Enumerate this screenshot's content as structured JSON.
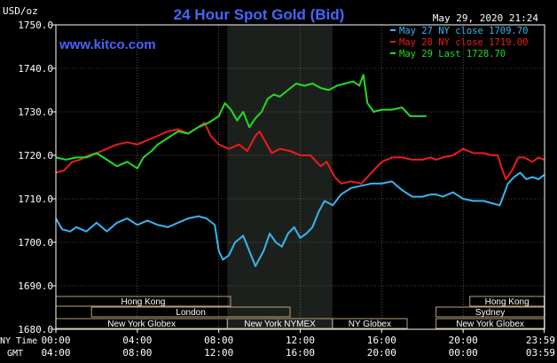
{
  "header": {
    "title": "24 Hour Spot Gold (Bid)",
    "unit": "USD/oz",
    "timestamp": "May 29, 2020 21:24",
    "site": "www.kitco.com"
  },
  "colors": {
    "background": "#000000",
    "frame": "#ffffff",
    "grid": "#8a8a8a",
    "title": "#4466ff",
    "shade": "#1c201c",
    "market_box": "#b8a27a"
  },
  "axis_labels": {
    "ny_time": "NY Time",
    "gmt": "GMT"
  },
  "markets": [
    {
      "label": "Hong Kong",
      "start": 0,
      "end": 8.58,
      "row": 0
    },
    {
      "label": "Hong Kong",
      "start": 20.33,
      "end": 23.98,
      "row": 0
    },
    {
      "label": "London",
      "start": 1.75,
      "end": 11.5,
      "row": 1
    },
    {
      "label": "Sydney",
      "start": 18.67,
      "end": 23.98,
      "row": 1
    },
    {
      "label": "New York Globex",
      "start": 0,
      "end": 8.42,
      "row": 2
    },
    {
      "label": "New York NYMEX",
      "start": 8.42,
      "end": 13.58,
      "row": 2
    },
    {
      "label": "NY Globex",
      "start": 13.58,
      "end": 17.25,
      "row": 2
    },
    {
      "label": "New York Globex",
      "start": 18.67,
      "end": 23.98,
      "row": 2
    }
  ],
  "chart_data": {
    "type": "line",
    "title": "24 Hour Spot Gold (Bid)",
    "ylabel": "USD/oz",
    "xlim": [
      0,
      24
    ],
    "ylim": [
      1680,
      1750
    ],
    "grid": true,
    "legend_position": "top-right",
    "shaded_region": [
      8.42,
      13.58
    ],
    "y_ticks": [
      "1750.0",
      "1740.0",
      "1730.0",
      "1720.0",
      "1710.0",
      "1700.0",
      "1690.0",
      "1680.0"
    ],
    "y_tick_values": [
      1750,
      1740,
      1730,
      1720,
      1710,
      1700,
      1690,
      1680
    ],
    "x_ticks": [
      {
        "value": 0,
        "ny": "00:00",
        "gmt": "04:00"
      },
      {
        "value": 4,
        "ny": "04:00",
        "gmt": "08:00"
      },
      {
        "value": 8,
        "ny": "08:00",
        "gmt": "12:00"
      },
      {
        "value": 12,
        "ny": "12:00",
        "gmt": "16:00"
      },
      {
        "value": 16,
        "ny": "16:00",
        "gmt": "20:00"
      },
      {
        "value": 20,
        "ny": "20:00",
        "gmt": "00:00"
      },
      {
        "value": 23.98,
        "ny": "23:59",
        "gmt": "03:59"
      }
    ],
    "series": [
      {
        "name": "May 27 NY close 1709.70",
        "color": "#3ab4f2",
        "points": [
          [
            0,
            1705.5
          ],
          [
            0.3,
            1703
          ],
          [
            0.7,
            1702.5
          ],
          [
            1.0,
            1703.5
          ],
          [
            1.5,
            1702.5
          ],
          [
            2.0,
            1704.5
          ],
          [
            2.5,
            1702.5
          ],
          [
            3.0,
            1704.5
          ],
          [
            3.5,
            1705.5
          ],
          [
            4.0,
            1704
          ],
          [
            4.5,
            1705
          ],
          [
            5.0,
            1704
          ],
          [
            5.5,
            1703.5
          ],
          [
            6.0,
            1704.5
          ],
          [
            6.5,
            1705.5
          ],
          [
            7.0,
            1706
          ],
          [
            7.4,
            1705.5
          ],
          [
            7.8,
            1704
          ],
          [
            8.0,
            1698
          ],
          [
            8.2,
            1696
          ],
          [
            8.5,
            1697
          ],
          [
            8.8,
            1700
          ],
          [
            9.2,
            1701.5
          ],
          [
            9.5,
            1698
          ],
          [
            9.8,
            1694.5
          ],
          [
            10.2,
            1698
          ],
          [
            10.5,
            1702
          ],
          [
            10.8,
            1700
          ],
          [
            11.1,
            1699
          ],
          [
            11.4,
            1702
          ],
          [
            11.7,
            1703.5
          ],
          [
            12.0,
            1701
          ],
          [
            12.3,
            1702
          ],
          [
            12.6,
            1703.5
          ],
          [
            12.9,
            1707
          ],
          [
            13.2,
            1709.5
          ],
          [
            13.6,
            1708.5
          ],
          [
            14.0,
            1711
          ],
          [
            14.5,
            1712.5
          ],
          [
            15.0,
            1713
          ],
          [
            15.5,
            1713.5
          ],
          [
            16.0,
            1713.5
          ],
          [
            16.5,
            1714
          ],
          [
            17.0,
            1712
          ],
          [
            17.5,
            1710.5
          ],
          [
            18.0,
            1710.5
          ],
          [
            18.4,
            1711
          ],
          [
            18.67,
            1711
          ],
          [
            19.0,
            1710.5
          ],
          [
            19.5,
            1711.5
          ],
          [
            20.0,
            1710
          ],
          [
            20.5,
            1709.5
          ],
          [
            21.0,
            1709.5
          ],
          [
            21.4,
            1709
          ],
          [
            21.8,
            1708.5
          ],
          [
            22.0,
            1711
          ],
          [
            22.2,
            1713.5
          ],
          [
            22.5,
            1715
          ],
          [
            22.8,
            1716
          ],
          [
            23.1,
            1714.5
          ],
          [
            23.4,
            1715
          ],
          [
            23.7,
            1714.5
          ],
          [
            23.98,
            1715.5
          ]
        ]
      },
      {
        "name": "May 28 NY close 1719.00",
        "color": "#ee1c1c",
        "points": [
          [
            0,
            1716
          ],
          [
            0.4,
            1716.5
          ],
          [
            0.8,
            1718.5
          ],
          [
            1.2,
            1719
          ],
          [
            1.6,
            1720
          ],
          [
            2.0,
            1720.5
          ],
          [
            2.5,
            1721.5
          ],
          [
            3.0,
            1722.5
          ],
          [
            3.5,
            1723
          ],
          [
            4.0,
            1722.5
          ],
          [
            4.5,
            1723.5
          ],
          [
            5.0,
            1724.5
          ],
          [
            5.5,
            1725.5
          ],
          [
            6.0,
            1726
          ],
          [
            6.5,
            1725
          ],
          [
            7.0,
            1726.5
          ],
          [
            7.3,
            1727.5
          ],
          [
            7.6,
            1724.5
          ],
          [
            8.0,
            1722.5
          ],
          [
            8.5,
            1721.5
          ],
          [
            9.0,
            1722.5
          ],
          [
            9.4,
            1721
          ],
          [
            9.8,
            1724.5
          ],
          [
            10.0,
            1725.5
          ],
          [
            10.3,
            1723
          ],
          [
            10.6,
            1720.5
          ],
          [
            11.0,
            1721.5
          ],
          [
            11.5,
            1721
          ],
          [
            12.0,
            1720
          ],
          [
            12.5,
            1720
          ],
          [
            13.0,
            1717.5
          ],
          [
            13.3,
            1718.5
          ],
          [
            13.7,
            1715
          ],
          [
            14.0,
            1713.5
          ],
          [
            14.5,
            1714
          ],
          [
            15.0,
            1713.5
          ],
          [
            15.5,
            1716
          ],
          [
            16.0,
            1718.5
          ],
          [
            16.5,
            1719.5
          ],
          [
            17.0,
            1719.5
          ],
          [
            17.5,
            1719
          ],
          [
            18.0,
            1719
          ],
          [
            18.4,
            1719.5
          ],
          [
            18.67,
            1719
          ],
          [
            19.0,
            1719.5
          ],
          [
            19.5,
            1720
          ],
          [
            20.0,
            1721.5
          ],
          [
            20.5,
            1720.5
          ],
          [
            21.0,
            1720.5
          ],
          [
            21.4,
            1720
          ],
          [
            21.7,
            1720
          ],
          [
            21.9,
            1717
          ],
          [
            22.1,
            1714.5
          ],
          [
            22.4,
            1716.5
          ],
          [
            22.7,
            1719.5
          ],
          [
            23.0,
            1719.5
          ],
          [
            23.4,
            1718.5
          ],
          [
            23.7,
            1719.5
          ],
          [
            23.98,
            1719
          ]
        ]
      },
      {
        "name": "May 29 Last 1728.70",
        "color": "#22dd22",
        "points": [
          [
            0,
            1719.5
          ],
          [
            0.5,
            1719
          ],
          [
            1.0,
            1719.5
          ],
          [
            1.5,
            1719.5
          ],
          [
            2.0,
            1720.5
          ],
          [
            2.5,
            1719
          ],
          [
            3.0,
            1717.5
          ],
          [
            3.5,
            1718.5
          ],
          [
            4.0,
            1717
          ],
          [
            4.3,
            1719.5
          ],
          [
            4.7,
            1721
          ],
          [
            5.0,
            1722.5
          ],
          [
            5.5,
            1724
          ],
          [
            6.0,
            1725.5
          ],
          [
            6.5,
            1725
          ],
          [
            7.0,
            1726.5
          ],
          [
            7.5,
            1727.5
          ],
          [
            8.0,
            1729
          ],
          [
            8.3,
            1732
          ],
          [
            8.6,
            1730.5
          ],
          [
            8.9,
            1728
          ],
          [
            9.2,
            1730
          ],
          [
            9.5,
            1726.5
          ],
          [
            9.8,
            1728.5
          ],
          [
            10.1,
            1730
          ],
          [
            10.4,
            1733
          ],
          [
            10.7,
            1734
          ],
          [
            11.0,
            1733.5
          ],
          [
            11.4,
            1735
          ],
          [
            11.8,
            1736.5
          ],
          [
            12.2,
            1736
          ],
          [
            12.6,
            1736.5
          ],
          [
            13.0,
            1735.5
          ],
          [
            13.4,
            1735
          ],
          [
            13.8,
            1736
          ],
          [
            14.2,
            1736.5
          ],
          [
            14.6,
            1737
          ],
          [
            14.9,
            1736
          ],
          [
            15.1,
            1738.5
          ],
          [
            15.3,
            1732
          ],
          [
            15.6,
            1730
          ],
          [
            16.0,
            1730.5
          ],
          [
            16.5,
            1730.5
          ],
          [
            17.0,
            1731
          ],
          [
            17.4,
            1729
          ],
          [
            17.8,
            1729
          ],
          [
            18.2,
            1729
          ]
        ]
      }
    ]
  }
}
